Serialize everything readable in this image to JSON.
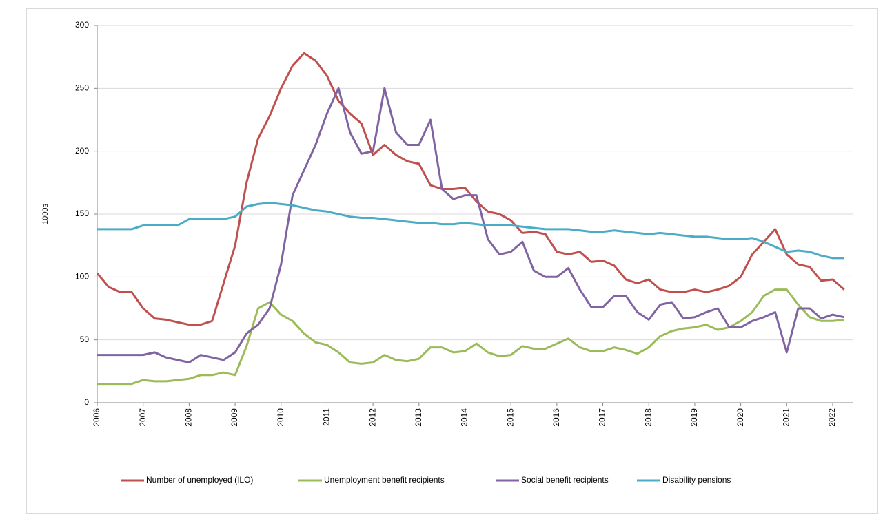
{
  "chart_data": {
    "type": "line",
    "y_label": "1000s",
    "x": [
      2006,
      2006.25,
      2006.5,
      2006.75,
      2007,
      2007.25,
      2007.5,
      2007.75,
      2008,
      2008.25,
      2008.5,
      2008.75,
      2009,
      2009.25,
      2009.5,
      2009.75,
      2010,
      2010.25,
      2010.5,
      2010.75,
      2011,
      2011.25,
      2011.5,
      2011.75,
      2012,
      2012.25,
      2012.5,
      2012.75,
      2013,
      2013.25,
      2013.5,
      2013.75,
      2014,
      2014.25,
      2014.5,
      2014.75,
      2015,
      2015.25,
      2015.5,
      2015.75,
      2016,
      2016.25,
      2016.5,
      2016.75,
      2017,
      2017.25,
      2017.5,
      2017.75,
      2018,
      2018.25,
      2018.5,
      2018.75,
      2019,
      2019.25,
      2019.5,
      2019.75,
      2020,
      2020.25,
      2020.5,
      2020.75,
      2021,
      2021.25,
      2021.5,
      2021.75,
      2022,
      2022.25
    ],
    "series": [
      {
        "name": "Number of unemployed (ILO)",
        "color": "#c0504d",
        "values": [
          103,
          92,
          88,
          88,
          75,
          67,
          66,
          64,
          62,
          62,
          65,
          95,
          125,
          175,
          210,
          228,
          250,
          268,
          278,
          272,
          260,
          240,
          230,
          222,
          197,
          205,
          197,
          192,
          190,
          173,
          170,
          170,
          171,
          160,
          152,
          150,
          145,
          135,
          136,
          134,
          120,
          118,
          120,
          112,
          113,
          109,
          98,
          95,
          98,
          90,
          88,
          88,
          90,
          88,
          90,
          93,
          100,
          118,
          128,
          138,
          118,
          110,
          108,
          97,
          98,
          90
        ]
      },
      {
        "name": "Unemployment benefit recipients",
        "color": "#9bbb59",
        "values": [
          15,
          15,
          15,
          15,
          18,
          17,
          17,
          18,
          19,
          22,
          22,
          24,
          22,
          45,
          75,
          80,
          70,
          65,
          55,
          48,
          46,
          40,
          32,
          31,
          32,
          38,
          34,
          33,
          35,
          44,
          44,
          40,
          41,
          47,
          40,
          37,
          38,
          45,
          43,
          43,
          47,
          51,
          44,
          41,
          41,
          44,
          42,
          39,
          44,
          53,
          57,
          59,
          60,
          62,
          58,
          60,
          65,
          72,
          85,
          90,
          90,
          78,
          68,
          65,
          65,
          66
        ]
      },
      {
        "name": "Social benefit recipients",
        "color": "#8064a2",
        "values": [
          38,
          38,
          38,
          38,
          38,
          40,
          36,
          34,
          32,
          38,
          36,
          34,
          40,
          55,
          62,
          75,
          110,
          165,
          185,
          205,
          230,
          250,
          215,
          198,
          200,
          250,
          215,
          205,
          205,
          225,
          170,
          162,
          165,
          165,
          130,
          118,
          120,
          128,
          105,
          100,
          100,
          107,
          90,
          76,
          76,
          85,
          85,
          72,
          66,
          78,
          80,
          67,
          68,
          72,
          75,
          60,
          60,
          65,
          68,
          72,
          40,
          75,
          75,
          67,
          70,
          68
        ]
      },
      {
        "name": "Disability pensions",
        "color": "#4bacc6",
        "values": [
          138,
          138,
          138,
          138,
          141,
          141,
          141,
          141,
          146,
          146,
          146,
          146,
          148,
          156,
          158,
          159,
          158,
          157,
          155,
          153,
          152,
          150,
          148,
          147,
          147,
          146,
          145,
          144,
          143,
          143,
          142,
          142,
          143,
          142,
          141,
          141,
          141,
          140,
          139,
          138,
          138,
          138,
          137,
          136,
          136,
          137,
          136,
          135,
          134,
          135,
          134,
          133,
          132,
          132,
          131,
          130,
          130,
          131,
          128,
          124,
          120,
          121,
          120,
          117,
          115,
          115
        ]
      }
    ],
    "xlim": [
      2006,
      2022.45
    ],
    "xticks": [
      2006,
      2007,
      2008,
      2009,
      2010,
      2011,
      2012,
      2013,
      2014,
      2015,
      2016,
      2017,
      2018,
      2019,
      2020,
      2021,
      2022
    ],
    "ylim": [
      0,
      300
    ],
    "yticks": [
      0,
      50,
      100,
      150,
      200,
      250,
      300
    ],
    "grid": true,
    "legend": "bottom"
  }
}
